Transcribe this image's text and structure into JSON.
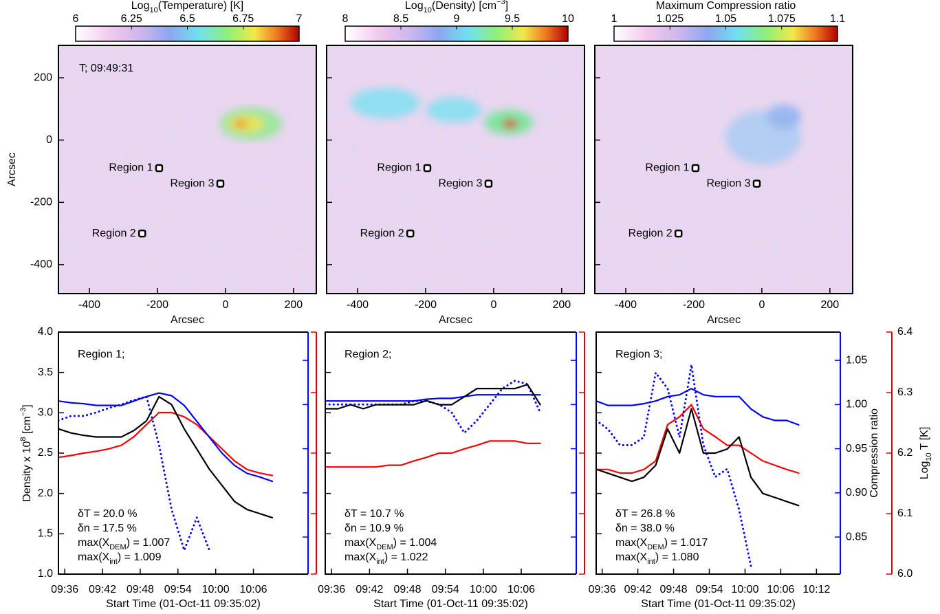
{
  "chart_data": [
    {
      "type": "image",
      "colorbar": {
        "label": [
          "Log",
          {
            "text": "10",
            "shift": "sub"
          },
          "(Temperature) [K]"
        ],
        "lim": [
          6,
          7
        ],
        "ticks": [
          6,
          6.25,
          6.5,
          6.75,
          7
        ]
      },
      "xlim": [
        -491,
        267
      ],
      "ylim": [
        -493,
        304
      ],
      "xticks": [
        -400,
        -200,
        0,
        200
      ],
      "yticks": [
        -400,
        -200,
        0,
        200
      ],
      "xlabel": "Arcsec",
      "ylabel": "Arcsec",
      "annotation": "T; 09:49:31",
      "regions": [
        {
          "name": "Region 1",
          "x": -195,
          "y": -90
        },
        {
          "name": "Region 3",
          "x": -15,
          "y": -140
        },
        {
          "name": "Region 2",
          "x": -245,
          "y": -300
        }
      ]
    },
    {
      "type": "image",
      "colorbar": {
        "label": [
          "Log",
          {
            "text": "10",
            "shift": "sub"
          },
          "(Density) [cm",
          {
            "text": "−3",
            "shift": "super"
          },
          "]"
        ],
        "lim": [
          8,
          10
        ],
        "ticks": [
          8,
          8.5,
          9,
          9.5,
          10
        ]
      },
      "xlim": [
        -491,
        267
      ],
      "ylim": [
        -493,
        304
      ],
      "xticks": [
        -400,
        -200,
        0,
        200
      ],
      "yticks": [
        -400,
        -200,
        0,
        200
      ],
      "ytick_labels": false,
      "xlabel": "Arcsec",
      "regions": [
        {
          "name": "Region 1",
          "x": -195,
          "y": -90
        },
        {
          "name": "Region 3",
          "x": -15,
          "y": -140
        },
        {
          "name": "Region 2",
          "x": -245,
          "y": -300
        }
      ]
    },
    {
      "type": "image",
      "colorbar": {
        "label": [
          "Maximum Compression ratio"
        ],
        "lim": [
          1,
          1.1
        ],
        "ticks": [
          1,
          1.025,
          1.05,
          1.075,
          1.1
        ]
      },
      "xlim": [
        -491,
        267
      ],
      "ylim": [
        -493,
        304
      ],
      "xticks": [
        -400,
        -200,
        0,
        200
      ],
      "yticks": [
        -400,
        -200,
        0,
        200
      ],
      "ytick_labels": false,
      "xlabel": "Arcsec",
      "regions": [
        {
          "name": "Region 1",
          "x": -195,
          "y": -90
        },
        {
          "name": "Region 3",
          "x": -15,
          "y": -140
        },
        {
          "name": "Region 2",
          "x": -245,
          "y": -300
        }
      ]
    },
    {
      "type": "line",
      "region": "Region 1;",
      "x": [
        "09:35",
        "09:37",
        "09:39",
        "09:41",
        "09:43",
        "09:45",
        "09:47",
        "09:49",
        "09:51",
        "09:53",
        "09:55",
        "09:57",
        "09:59",
        "10:01",
        "10:03",
        "10:05",
        "10:07",
        "10:09"
      ],
      "xlim": [
        "09:35",
        "10:16"
      ],
      "xticks": [
        "09:36",
        "09:42",
        "09:48",
        "09:54",
        "10:00",
        "10:06"
      ],
      "xlabel": "Start Time (01-Oct-11 09:35:02)",
      "ylabel": [
        "Density x 10",
        {
          "text": "8",
          "shift": "super"
        },
        " [cm",
        {
          "text": "−3",
          "shift": "super"
        },
        "]"
      ],
      "ylim": [
        1,
        4
      ],
      "yticks": [
        {
          "value": 1,
          "label": "1.0"
        },
        1.5,
        {
          "value": 2,
          "label": "2.0"
        },
        2.5,
        {
          "value": 3,
          "label": "3.0"
        },
        3.5,
        {
          "value": 4,
          "label": "4.0"
        }
      ],
      "y2lim": [
        0.808,
        1.082
      ],
      "y2ticks": [
        0.85,
        {
          "value": 0.9,
          "label": "0.90"
        },
        0.95,
        {
          "value": 1,
          "label": "1.00"
        },
        1.05
      ],
      "y3lim": [
        6,
        6.4
      ],
      "y3ticks": [
        {
          "value": 6,
          "label": "6.0"
        },
        6.1,
        6.2,
        6.3,
        6.4
      ],
      "hidden_tick_labels": [
        "y2",
        "y3"
      ],
      "series": [
        {
          "color": "#ff0000",
          "axis": "y3",
          "values": [
            6.193,
            6.196,
            6.2,
            6.203,
            6.207,
            6.213,
            6.227,
            6.247,
            6.267,
            6.267,
            6.26,
            6.247,
            6.227,
            6.207,
            6.187,
            6.173,
            6.167,
            6.163
          ]
        },
        {
          "color": "#0000ff",
          "axis": "y2",
          "values": [
            1.004,
            1.002,
            1.001,
            0.999,
            0.999,
            0.999,
            1.004,
            1.009,
            1.013,
            1.01,
            0.999,
            0.981,
            0.963,
            0.945,
            0.931,
            0.922,
            0.918,
            0.913
          ]
        },
        {
          "color": "#0000ff",
          "axis": "y2",
          "dotted": true,
          "values": [
            0.982,
            0.987,
            0.987,
            0.991,
            0.996,
            1.0,
            1.005,
            1.009,
            0.954,
            0.881,
            0.835,
            0.872,
            0.835,
            null,
            null,
            null,
            null,
            null
          ]
        },
        {
          "color": "#000000",
          "axis": "y",
          "values": [
            2.8,
            2.75,
            2.72,
            2.7,
            2.7,
            2.7,
            2.78,
            2.9,
            3.2,
            3.1,
            2.8,
            2.55,
            2.3,
            2.1,
            1.9,
            1.8,
            1.75,
            1.7
          ]
        }
      ],
      "stats": [
        {
          "color": "#ff0000",
          "text": [
            "δT = 20.0 %"
          ]
        },
        {
          "color": "#000000",
          "text": [
            "δn = 17.5 %"
          ]
        },
        {
          "color": "#0000ff",
          "text": [
            "max(X",
            {
              "text": "DEM",
              "shift": "sub"
            },
            ") = 1.007"
          ]
        },
        {
          "color": "#0000ff",
          "text": [
            "max(X",
            {
              "text": "int",
              "shift": "sub"
            },
            ") = 1.009"
          ]
        }
      ]
    },
    {
      "type": "line",
      "region": "Region 2;",
      "x": [
        "09:35",
        "09:37",
        "09:39",
        "09:41",
        "09:43",
        "09:45",
        "09:47",
        "09:49",
        "09:51",
        "09:53",
        "09:55",
        "09:57",
        "09:59",
        "10:01",
        "10:03",
        "10:05",
        "10:07",
        "10:09"
      ],
      "xlim": [
        "09:35",
        "10:16"
      ],
      "xticks": [
        "09:36",
        "09:42",
        "09:48",
        "09:54",
        "10:00",
        "10:06"
      ],
      "xlabel": "Start Time (01-Oct-11 09:35:02)",
      "ylim": [
        1,
        4
      ],
      "yticks": [
        {
          "value": 1,
          "label": "1.0"
        },
        1.5,
        {
          "value": 2,
          "label": "2.0"
        },
        2.5,
        {
          "value": 3,
          "label": "3.0"
        },
        3.5,
        {
          "value": 4,
          "label": "4.0"
        }
      ],
      "y2lim": [
        0.808,
        1.082
      ],
      "y2ticks": [
        0.85,
        {
          "value": 0.9,
          "label": "0.90"
        },
        0.95,
        {
          "value": 1,
          "label": "1.00"
        },
        1.05
      ],
      "y3lim": [
        6,
        6.4
      ],
      "y3ticks": [
        {
          "value": 6,
          "label": "6.0"
        },
        6.1,
        6.2,
        6.3,
        6.4
      ],
      "hidden_tick_labels": [
        "y",
        "y2",
        "y3"
      ],
      "series": [
        {
          "color": "#ff0000",
          "axis": "y3",
          "values": [
            6.177,
            6.177,
            6.177,
            6.177,
            6.177,
            6.18,
            6.18,
            6.187,
            6.193,
            6.2,
            6.2,
            6.207,
            6.213,
            6.22,
            6.22,
            6.22,
            6.216,
            6.216
          ]
        },
        {
          "color": "#0000ff",
          "axis": "y2",
          "values": [
            1.004,
            1.004,
            1.004,
            1.004,
            1.004,
            1.004,
            1.004,
            1.004,
            1.006,
            1.007,
            1.007,
            1.009,
            1.011,
            1.011,
            1.011,
            1.011,
            1.011,
            1.011
          ]
        },
        {
          "color": "#0000ff",
          "axis": "y2",
          "dotted": true,
          "values": [
            1.0,
            1.0,
            1.0,
            1.0,
            1.0,
            1.0,
            1.0,
            1.004,
            1.004,
            1.0,
            0.991,
            0.968,
            0.982,
            1.0,
            1.018,
            1.027,
            1.023,
            0.991
          ]
        },
        {
          "color": "#000000",
          "axis": "y",
          "values": [
            3.05,
            3.05,
            3.1,
            3.05,
            3.1,
            3.1,
            3.1,
            3.1,
            3.15,
            3.1,
            3.1,
            3.2,
            3.3,
            3.3,
            3.3,
            3.3,
            3.35,
            3.1
          ]
        }
      ],
      "stats": [
        {
          "color": "#ff0000",
          "text": [
            "δT = 10.7 %"
          ]
        },
        {
          "color": "#000000",
          "text": [
            "δn = 10.9 %"
          ]
        },
        {
          "color": "#0000ff",
          "text": [
            "max(X",
            {
              "text": "DEM",
              "shift": "sub"
            },
            ") = 1.004"
          ]
        },
        {
          "color": "#0000ff",
          "text": [
            "max(X",
            {
              "text": "int",
              "shift": "sub"
            },
            ") = 1.022"
          ]
        }
      ]
    },
    {
      "type": "line",
      "region": "Region 3;",
      "x": [
        "09:35",
        "09:37",
        "09:39",
        "09:41",
        "09:43",
        "09:45",
        "09:47",
        "09:49",
        "09:51",
        "09:53",
        "09:55",
        "09:57",
        "09:59",
        "10:01",
        "10:03",
        "10:05",
        "10:07",
        "10:09"
      ],
      "xlim": [
        "09:35",
        "10:16"
      ],
      "xticks": [
        "09:36",
        "09:42",
        "09:48",
        "09:54",
        "10:00",
        "10:06",
        "10:12"
      ],
      "xlabel": "Start Time (01-Oct-11 09:35:02)",
      "ylim": [
        1,
        4
      ],
      "yticks": [
        {
          "value": 1,
          "label": "1.0"
        },
        1.5,
        {
          "value": 2,
          "label": "2.0"
        },
        2.5,
        {
          "value": 3,
          "label": "3.0"
        },
        3.5,
        {
          "value": 4,
          "label": "4.0"
        }
      ],
      "y2lim": [
        0.808,
        1.082
      ],
      "y2ticks": [
        0.85,
        {
          "value": 0.9,
          "label": "0.90"
        },
        0.95,
        {
          "value": 1,
          "label": "1.00"
        },
        1.05
      ],
      "y3lim": [
        6,
        6.4
      ],
      "y3ticks": [
        {
          "value": 6,
          "label": "6.0"
        },
        6.1,
        6.2,
        6.3,
        6.4
      ],
      "hidden_tick_labels": [
        "y"
      ],
      "y2label": "Compression ratio",
      "y3label": [
        "Log",
        {
          "text": "10",
          "shift": "sub"
        },
        " T [K]"
      ],
      "series": [
        {
          "color": "#ff0000",
          "axis": "y3",
          "values": [
            6.173,
            6.173,
            6.167,
            6.167,
            6.173,
            6.187,
            6.247,
            6.26,
            6.28,
            6.24,
            6.227,
            6.213,
            6.213,
            6.2,
            6.187,
            6.18,
            6.173,
            6.167
          ]
        },
        {
          "color": "#0000ff",
          "axis": "y2",
          "values": [
            1.004,
            0.999,
            0.999,
            0.999,
            1.001,
            1.004,
            1.009,
            1.011,
            1.018,
            1.011,
            1.009,
            1.009,
            1.009,
            0.995,
            0.986,
            0.982,
            0.982,
            0.977
          ]
        },
        {
          "color": "#0000ff",
          "axis": "y2",
          "dotted": true,
          "values": [
            0.982,
            0.972,
            0.954,
            0.954,
            0.963,
            1.036,
            1.018,
            0.963,
            1.045,
            0.954,
            0.918,
            0.927,
            0.881,
            0.817,
            null,
            null,
            null,
            null
          ]
        },
        {
          "color": "#000000",
          "axis": "y",
          "values": [
            2.3,
            2.25,
            2.2,
            2.15,
            2.2,
            2.35,
            2.8,
            2.5,
            3.05,
            2.5,
            2.5,
            2.55,
            2.7,
            2.2,
            2.0,
            1.95,
            1.9,
            1.85
          ]
        }
      ],
      "stats": [
        {
          "color": "#ff0000",
          "text": [
            "δT = 26.8 %"
          ]
        },
        {
          "color": "#000000",
          "text": [
            "δn = 38.0 %"
          ]
        },
        {
          "color": "#0000ff",
          "text": [
            "max(X",
            {
              "text": "DEM",
              "shift": "sub"
            },
            ") = 1.017"
          ]
        },
        {
          "color": "#0000ff",
          "text": [
            "max(X",
            {
              "text": "int",
              "shift": "sub"
            },
            ") = 1.080"
          ]
        }
      ]
    }
  ]
}
